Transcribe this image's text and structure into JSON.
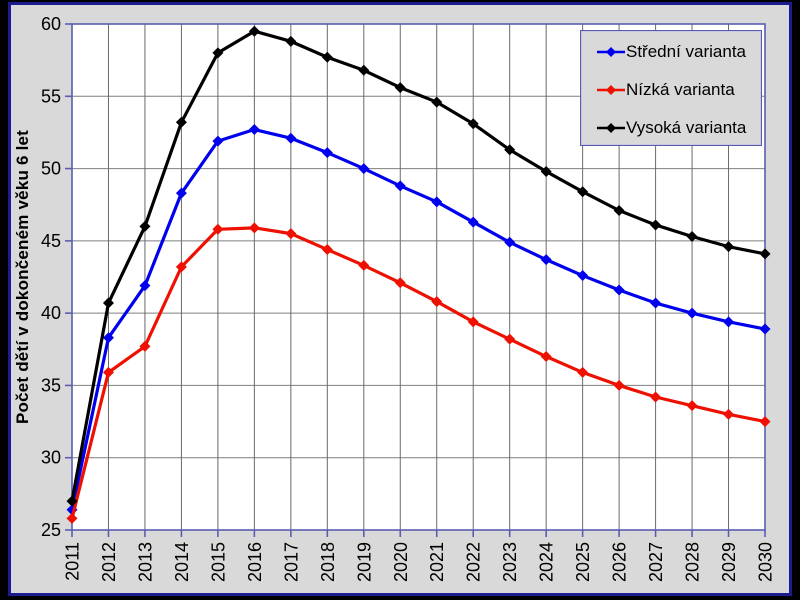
{
  "frame": {
    "outer_background": "#000000",
    "border_color": "#1c1c90",
    "slide_background": "#d9d9d9"
  },
  "chart_data": {
    "type": "line",
    "title": "",
    "xlabel": "",
    "ylabel": "Počet dětí v dokončeném věku 6 let",
    "ylim": [
      25,
      60
    ],
    "y_ticks": [
      25,
      30,
      35,
      40,
      45,
      50,
      55,
      60
    ],
    "grid": true,
    "legend_position": "top-right",
    "marker": "diamond",
    "x": [
      2011,
      2012,
      2013,
      2014,
      2015,
      2016,
      2017,
      2018,
      2019,
      2020,
      2021,
      2022,
      2023,
      2024,
      2025,
      2026,
      2027,
      2028,
      2029,
      2030
    ],
    "series": [
      {
        "name": "Střední varianta",
        "color": "#0000ee",
        "values": [
          26.4,
          38.3,
          41.9,
          48.3,
          51.9,
          52.7,
          52.1,
          51.1,
          50.0,
          48.8,
          47.7,
          46.3,
          44.9,
          43.7,
          42.6,
          41.6,
          40.7,
          40.0,
          39.4,
          38.9
        ]
      },
      {
        "name": "Nízká varianta",
        "color": "#ee1000",
        "values": [
          25.8,
          35.9,
          37.7,
          43.2,
          45.8,
          45.9,
          45.5,
          44.4,
          43.3,
          42.1,
          40.8,
          39.4,
          38.2,
          37.0,
          35.9,
          35.0,
          34.2,
          33.6,
          33.0,
          32.5
        ]
      },
      {
        "name": "Vysoká varianta",
        "color": "#000000",
        "values": [
          27.0,
          40.7,
          46.0,
          53.2,
          58.0,
          59.5,
          58.8,
          57.7,
          56.8,
          55.6,
          54.6,
          53.1,
          51.3,
          49.8,
          48.4,
          47.1,
          46.1,
          45.3,
          44.6,
          44.1
        ]
      }
    ],
    "plot_style": {
      "plot_background": "#ffffff",
      "plot_border_color": "#5c5cb2",
      "axis_color": "#5c5cb2",
      "grid_color_h": "#7f7f7f",
      "grid_color_v": "#6a6a6a",
      "tick_label_color": "#000000"
    }
  }
}
